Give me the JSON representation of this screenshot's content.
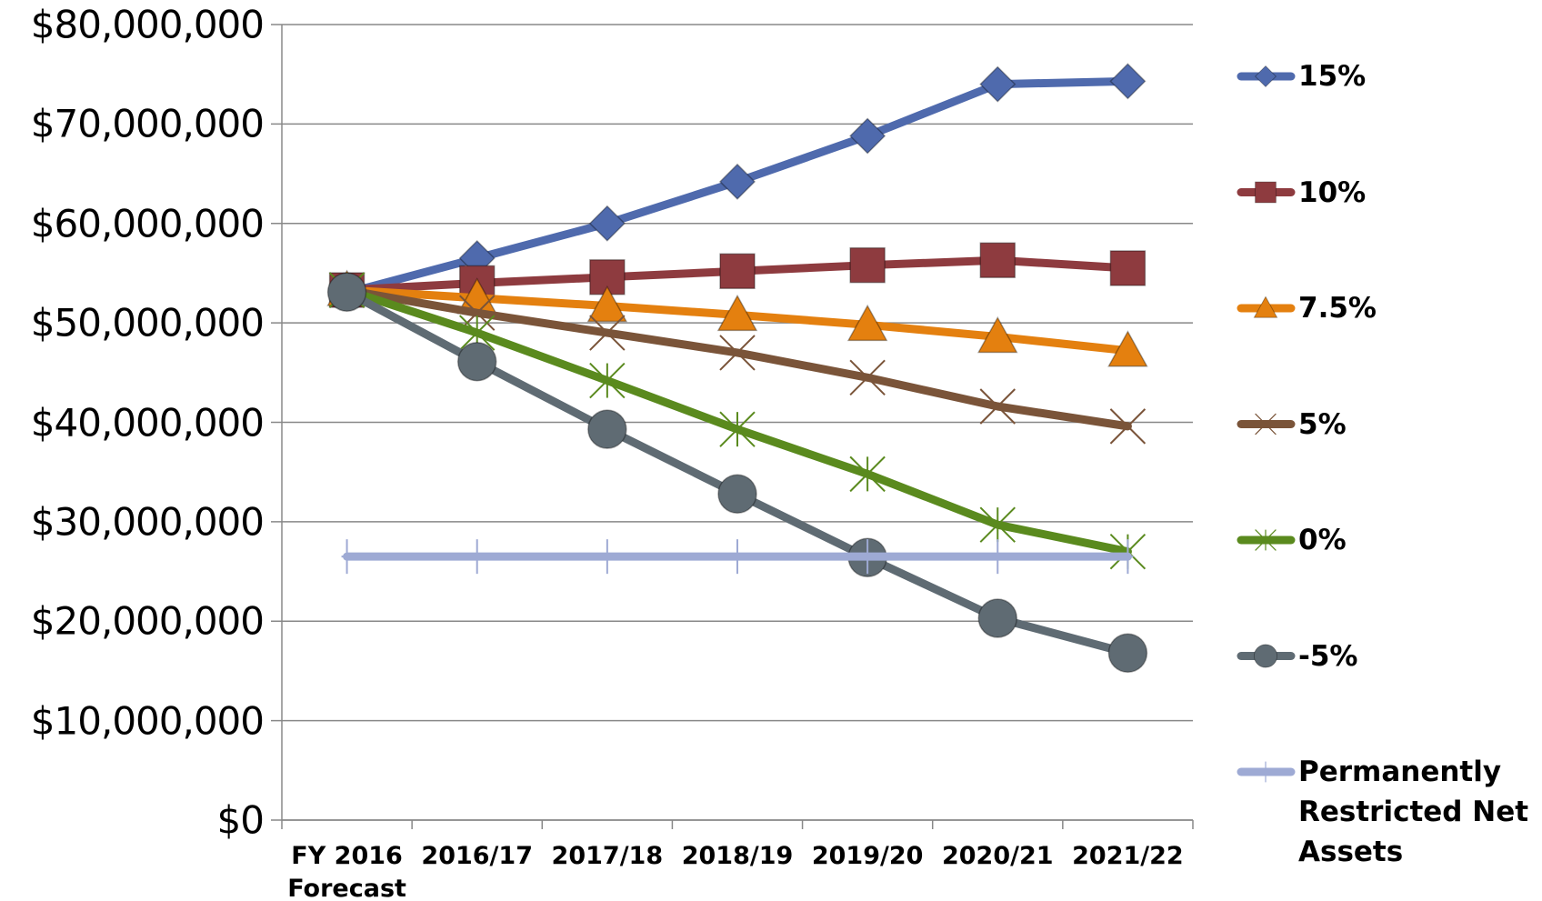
{
  "chart_data": {
    "type": "line",
    "categories": [
      "FY 2016 Forecast",
      "2016/17",
      "2017/18",
      "2018/19",
      "2019/20",
      "2020/21",
      "2021/22"
    ],
    "series": [
      {
        "name": "15%",
        "color": "#4f6aad",
        "marker": "diamond",
        "values": [
          53000000,
          56500000,
          60000000,
          64200000,
          68800000,
          74000000,
          74300000
        ]
      },
      {
        "name": "10%",
        "color": "#8e3b3f",
        "marker": "square",
        "values": [
          53300000,
          54000000,
          54600000,
          55200000,
          55800000,
          56300000,
          55500000
        ]
      },
      {
        "name": "7.5%",
        "color": "#e4800f",
        "marker": "triangle",
        "values": [
          53300000,
          52500000,
          51700000,
          50800000,
          49800000,
          48600000,
          47200000
        ]
      },
      {
        "name": "5%",
        "color": "#7a5439",
        "marker": "x",
        "values": [
          53300000,
          51000000,
          49000000,
          47000000,
          44500000,
          41600000,
          39600000
        ]
      },
      {
        "name": "0%",
        "color": "#5a8a1e",
        "marker": "star",
        "values": [
          53300000,
          49000000,
          44200000,
          39300000,
          34800000,
          29700000,
          27000000
        ]
      },
      {
        "name": "-5%",
        "color": "#5f6b73",
        "marker": "circle",
        "values": [
          53100000,
          46100000,
          39300000,
          32800000,
          26400000,
          20300000,
          16800000
        ]
      },
      {
        "name": "Permanently Restricted Net Assets",
        "color": "#9eaad4",
        "marker": "plus",
        "values": [
          26500000,
          26500000,
          26500000,
          26500000,
          26500000,
          26500000,
          26500000
        ]
      }
    ],
    "ylim": [
      0,
      80000000
    ],
    "yticks": [
      {
        "value": 0,
        "label": "$0"
      },
      {
        "value": 10000000,
        "label": "$10,000,000"
      },
      {
        "value": 20000000,
        "label": "$20,000,000"
      },
      {
        "value": 30000000,
        "label": "$30,000,000"
      },
      {
        "value": 40000000,
        "label": "$40,000,000"
      },
      {
        "value": 50000000,
        "label": "$50,000,000"
      },
      {
        "value": 60000000,
        "label": "$60,000,000"
      },
      {
        "value": 70000000,
        "label": "$70,000,000"
      },
      {
        "value": 80000000,
        "label": "$80,000,000"
      }
    ],
    "grid": true,
    "legend": "right"
  }
}
